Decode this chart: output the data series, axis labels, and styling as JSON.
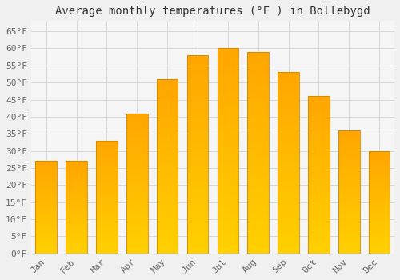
{
  "title": "Average monthly temperatures (°F ) in Bollebygd",
  "months": [
    "Jan",
    "Feb",
    "Mar",
    "Apr",
    "May",
    "Jun",
    "Jul",
    "Aug",
    "Sep",
    "Oct",
    "Nov",
    "Dec"
  ],
  "values": [
    27,
    27,
    33,
    41,
    51,
    58,
    60,
    59,
    53,
    46,
    36,
    30
  ],
  "bar_color_bottom": "#FFD000",
  "bar_color_top": "#FFA500",
  "bar_edge_color": "#CC8800",
  "ylim": [
    0,
    68
  ],
  "yticks": [
    0,
    5,
    10,
    15,
    20,
    25,
    30,
    35,
    40,
    45,
    50,
    55,
    60,
    65
  ],
  "ytick_labels": [
    "0°F",
    "5°F",
    "10°F",
    "15°F",
    "20°F",
    "25°F",
    "30°F",
    "35°F",
    "40°F",
    "45°F",
    "50°F",
    "55°F",
    "60°F",
    "65°F"
  ],
  "title_fontsize": 10,
  "tick_fontsize": 8,
  "background_color": "#f0f0f0",
  "plot_bg_color": "#f5f5f5",
  "grid_color": "#d8d8d8",
  "font_family": "monospace",
  "bar_width": 0.7
}
